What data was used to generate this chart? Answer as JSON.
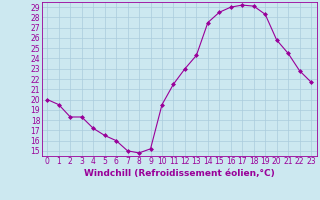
{
  "x": [
    0,
    1,
    2,
    3,
    4,
    5,
    6,
    7,
    8,
    9,
    10,
    11,
    12,
    13,
    14,
    15,
    16,
    17,
    18,
    19,
    20,
    21,
    22,
    23
  ],
  "y": [
    20.0,
    19.5,
    18.3,
    18.3,
    17.2,
    16.5,
    16.0,
    15.0,
    14.8,
    15.2,
    19.5,
    21.5,
    23.0,
    24.3,
    27.5,
    28.5,
    29.0,
    29.2,
    29.1,
    28.3,
    25.8,
    24.5,
    22.8,
    21.7
  ],
  "line_color": "#990099",
  "marker": "D",
  "marker_size": 2,
  "bg_color": "#cce8f0",
  "grid_color": "#aaccdd",
  "xlabel": "Windchill (Refroidissement éolien,°C)",
  "xlim": [
    -0.5,
    23.5
  ],
  "ylim": [
    14.5,
    29.5
  ],
  "xticks": [
    0,
    1,
    2,
    3,
    4,
    5,
    6,
    7,
    8,
    9,
    10,
    11,
    12,
    13,
    14,
    15,
    16,
    17,
    18,
    19,
    20,
    21,
    22,
    23
  ],
  "yticks": [
    15,
    16,
    17,
    18,
    19,
    20,
    21,
    22,
    23,
    24,
    25,
    26,
    27,
    28,
    29
  ],
  "xlabel_fontsize": 6.5,
  "tick_fontsize": 5.5
}
